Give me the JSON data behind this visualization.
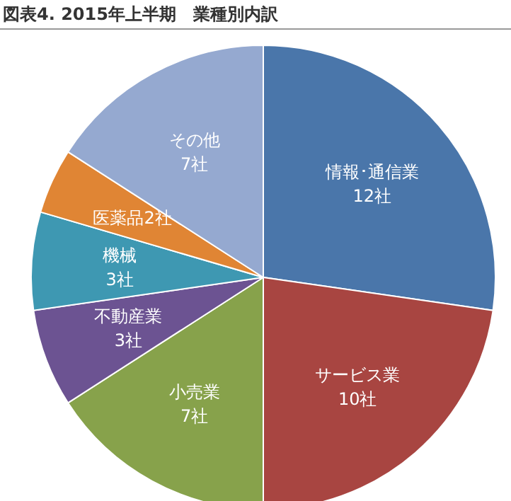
{
  "chart_data": {
    "type": "pie",
    "title": "図表4. 2015年上半期　業種別内訳",
    "categories": [
      "情報･通信業",
      "サービス業",
      "小売業",
      "不動産業",
      "機械",
      "医薬品",
      "その他"
    ],
    "values": [
      12,
      10,
      7,
      3,
      3,
      2,
      7
    ],
    "value_labels": [
      "12社",
      "10社",
      "7社",
      "3社",
      "3社",
      "2社",
      "7社"
    ],
    "colors": [
      "#4a76aa",
      "#a84541",
      "#87a24b",
      "#6c5392",
      "#3e98b2",
      "#e08534",
      "#95a9d0"
    ],
    "legend": false
  }
}
